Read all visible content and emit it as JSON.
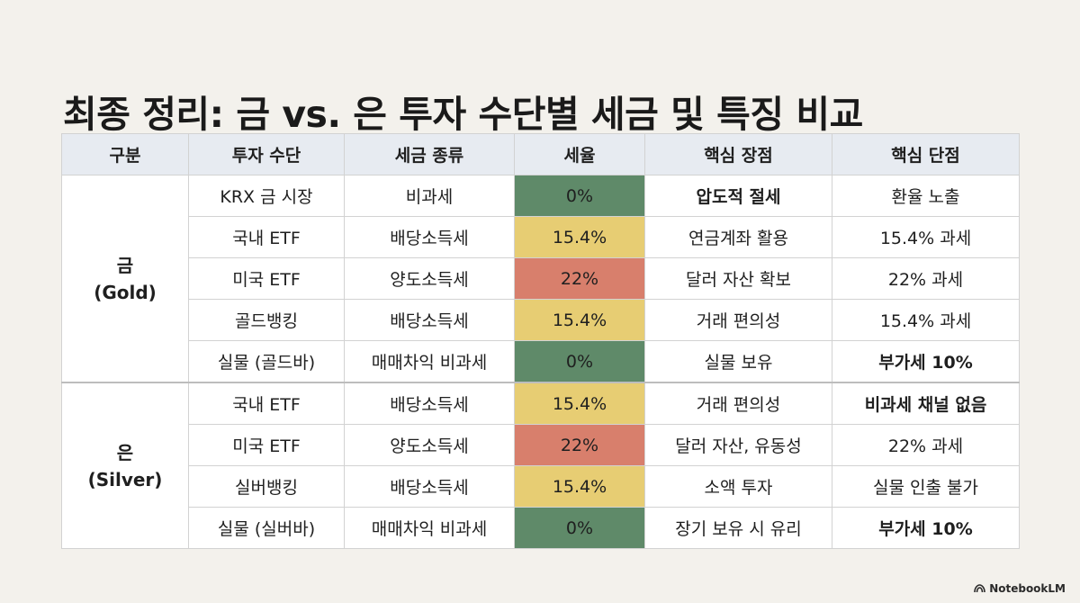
{
  "title": "최종 정리: 금 vs. 은 투자 수단별 세금 및 특징 비교",
  "columns": [
    "구분",
    "투자 수단",
    "세금 종류",
    "세율",
    "핵심 장점",
    "핵심 단점"
  ],
  "groups": [
    {
      "label": "금\n(Gold)",
      "rows": [
        {
          "vehicle": "KRX 금 시장",
          "tax_type": "비과세",
          "rate": "0%",
          "rate_color": "#5f8a69",
          "pro": "압도적 절세",
          "pro_bold": true,
          "con": "환율 노출",
          "con_bold": false
        },
        {
          "vehicle": "국내 ETF",
          "tax_type": "배당소득세",
          "rate": "15.4%",
          "rate_color": "#e7cd73",
          "pro": "연금계좌 활용",
          "pro_bold": false,
          "con": "15.4% 과세",
          "con_bold": false
        },
        {
          "vehicle": "미국 ETF",
          "tax_type": "양도소득세",
          "rate": "22%",
          "rate_color": "#d87f6c",
          "pro": "달러 자산 확보",
          "pro_bold": false,
          "con": "22% 과세",
          "con_bold": false
        },
        {
          "vehicle": "골드뱅킹",
          "tax_type": "배당소득세",
          "rate": "15.4%",
          "rate_color": "#e7cd73",
          "pro": "거래 편의성",
          "pro_bold": false,
          "con": "15.4% 과세",
          "con_bold": false
        },
        {
          "vehicle": "실물 (골드바)",
          "tax_type": "매매차익 비과세",
          "rate": "0%",
          "rate_color": "#5f8a69",
          "pro": "실물 보유",
          "pro_bold": false,
          "con": "부가세 10%",
          "con_bold": true
        }
      ]
    },
    {
      "label": "은\n(Silver)",
      "rows": [
        {
          "vehicle": "국내 ETF",
          "tax_type": "배당소득세",
          "rate": "15.4%",
          "rate_color": "#e7cd73",
          "pro": "거래 편의성",
          "pro_bold": false,
          "con": "비과세 채널 없음",
          "con_bold": true
        },
        {
          "vehicle": "미국 ETF",
          "tax_type": "양도소득세",
          "rate": "22%",
          "rate_color": "#d87f6c",
          "pro": "달러 자산, 유동성",
          "pro_bold": false,
          "con": "22% 과세",
          "con_bold": false
        },
        {
          "vehicle": "실버뱅킹",
          "tax_type": "배당소득세",
          "rate": "15.4%",
          "rate_color": "#e7cd73",
          "pro": "소액 투자",
          "pro_bold": false,
          "con": "실물 인출 불가",
          "con_bold": false
        },
        {
          "vehicle": "실물 (실버바)",
          "tax_type": "매매차익 비과세",
          "rate": "0%",
          "rate_color": "#5f8a69",
          "pro": "장기 보유 시 유리",
          "pro_bold": false,
          "con": "부가세 10%",
          "con_bold": true
        }
      ]
    }
  ],
  "footer": {
    "brand": "NotebookLM",
    "icon": "notebooklm-logo-icon"
  }
}
